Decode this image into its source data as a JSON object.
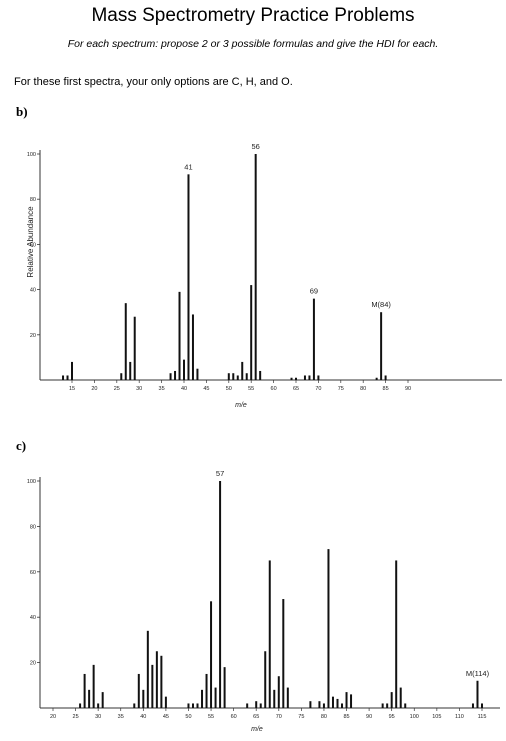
{
  "page": {
    "title": "Mass Spectrometry Practice Problems",
    "subtitle": "For each spectrum: propose 2 or 3 possible formulas and give the HDI for each.",
    "instructions": "For these first spectra, your only options are C, H, and O."
  },
  "chart_data": [
    {
      "type": "bar",
      "panel_label": "b)",
      "ylabel": "Relative Abundance",
      "xlabel": "m/e",
      "ylim": [
        0,
        100
      ],
      "yticks": [
        "20",
        "40",
        "60",
        "80",
        "100"
      ],
      "xticks": [
        "15",
        "20",
        "25",
        "30",
        "35",
        "40",
        "45",
        "50",
        "55",
        "60",
        "65",
        "70",
        "75",
        "80",
        "85",
        "90"
      ],
      "x": [
        13,
        14,
        15,
        26,
        27,
        28,
        29,
        37,
        38,
        39,
        40,
        41,
        42,
        43,
        50,
        51,
        52,
        53,
        54,
        55,
        56,
        57,
        64,
        65,
        67,
        68,
        69,
        70,
        83,
        84,
        85
      ],
      "values": [
        2,
        2,
        8,
        3,
        34,
        8,
        28,
        3,
        4,
        39,
        9,
        91,
        29,
        5,
        3,
        3,
        2,
        8,
        3,
        42,
        100,
        4,
        1,
        1,
        2,
        2,
        36,
        2,
        1,
        30,
        2
      ],
      "annotations": [
        {
          "x": 41,
          "label": "41"
        },
        {
          "x": 56,
          "label": "56"
        },
        {
          "x": 69,
          "label": "69"
        },
        {
          "x": 84,
          "label": "M(84)"
        }
      ]
    },
    {
      "type": "bar",
      "panel_label": "c)",
      "xlabel": "m/e",
      "ylim": [
        0,
        100
      ],
      "yticks": [
        "20",
        "40",
        "60",
        "80",
        "100"
      ],
      "xticks": [
        "20",
        "25",
        "30",
        "35",
        "40",
        "45",
        "50",
        "55",
        "60",
        "65",
        "70",
        "75",
        "80",
        "85",
        "90",
        "95",
        "100",
        "105",
        "110",
        "115"
      ],
      "x": [
        26,
        27,
        28,
        29,
        30,
        31,
        38,
        39,
        40,
        41,
        42,
        43,
        44,
        45,
        50,
        51,
        52,
        53,
        54,
        55,
        56,
        57,
        58,
        63,
        65,
        66,
        67,
        68,
        69,
        70,
        71,
        72,
        77,
        79,
        80,
        81,
        82,
        83,
        84,
        85,
        86,
        93,
        94,
        95,
        96,
        97,
        98,
        113,
        114,
        115
      ],
      "values": [
        2,
        15,
        8,
        19,
        2,
        7,
        2,
        15,
        8,
        34,
        19,
        25,
        23,
        5,
        2,
        2,
        2,
        8,
        15,
        47,
        9,
        100,
        18,
        2,
        3,
        2,
        25,
        65,
        8,
        14,
        48,
        9,
        3,
        3,
        2,
        70,
        5,
        4,
        2,
        7,
        6,
        2,
        2,
        7,
        65,
        9,
        2,
        2,
        12,
        2
      ],
      "annotations": [
        {
          "x": 57,
          "label": "57"
        },
        {
          "x": 114,
          "label": "M(114)"
        }
      ]
    }
  ]
}
